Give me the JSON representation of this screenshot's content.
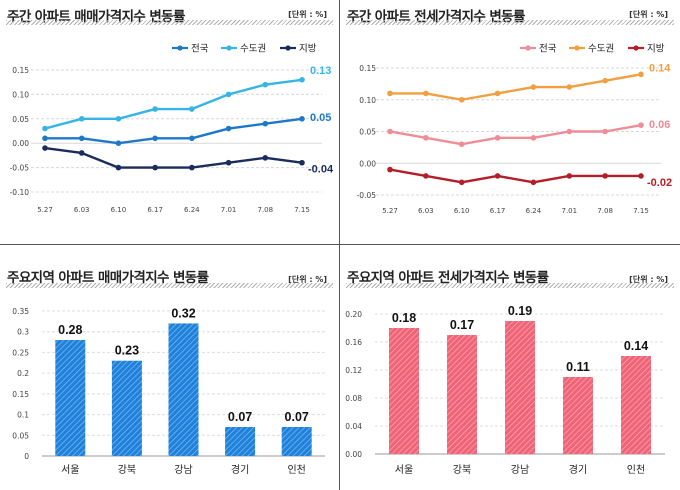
{
  "chart_data": [
    {
      "type": "line",
      "title": "주간 아파트 매매가격지수 변동률",
      "unit_label": "[단위 : %]",
      "categories": [
        "5.27",
        "6.03",
        "6.10",
        "6.17",
        "6.24",
        "7.01",
        "7.08",
        "7.15"
      ],
      "ylim": [
        -0.1,
        0.15
      ],
      "yticks": [
        0.15,
        0.1,
        0.05,
        0.0,
        -0.05,
        -0.1
      ],
      "ytick_labels": [
        "0.15",
        "0.10",
        "0.05",
        "0.00",
        "-0.05",
        "-0.10"
      ],
      "legend_position": "top-right",
      "series": [
        {
          "name": "전국",
          "color": "#1e78c8",
          "values": [
            0.01,
            0.01,
            0.0,
            0.01,
            0.01,
            0.03,
            0.04,
            0.05
          ],
          "end_label": "0.05"
        },
        {
          "name": "수도권",
          "color": "#36b4e6",
          "values": [
            0.03,
            0.05,
            0.05,
            0.07,
            0.07,
            0.1,
            0.12,
            0.13
          ],
          "end_label": "0.13"
        },
        {
          "name": "지방",
          "color": "#1a2c5e",
          "values": [
            -0.01,
            -0.02,
            -0.05,
            -0.05,
            -0.05,
            -0.04,
            -0.03,
            -0.04
          ],
          "end_label": "-0.04"
        }
      ]
    },
    {
      "type": "line",
      "title": "주간 아파트 전세가격지수 변동률",
      "unit_label": "[단위 : %]",
      "categories": [
        "5.27",
        "6.03",
        "6.10",
        "6.17",
        "6.24",
        "7.01",
        "7.08",
        "7.15"
      ],
      "ylim": [
        -0.05,
        0.15
      ],
      "yticks": [
        0.15,
        0.1,
        0.05,
        0.0,
        -0.05
      ],
      "ytick_labels": [
        "0.15",
        "0.10",
        "0.05",
        "0.00",
        "-0.05"
      ],
      "legend_position": "top-right",
      "series": [
        {
          "name": "전국",
          "color": "#f08c96",
          "values": [
            0.05,
            0.04,
            0.03,
            0.04,
            0.04,
            0.05,
            0.05,
            0.06
          ],
          "end_label": "0.06"
        },
        {
          "name": "수도권",
          "color": "#f0a040",
          "values": [
            0.11,
            0.11,
            0.1,
            0.11,
            0.12,
            0.12,
            0.13,
            0.14
          ],
          "end_label": "0.14"
        },
        {
          "name": "지방",
          "color": "#b41e28",
          "values": [
            -0.01,
            -0.02,
            -0.03,
            -0.02,
            -0.03,
            -0.02,
            -0.02,
            -0.02
          ],
          "end_label": "-0.02"
        }
      ]
    },
    {
      "type": "bar",
      "title": "주요지역 아파트 매매가격지수 변동률",
      "unit_label": "[단위 : %]",
      "categories": [
        "서울",
        "강북",
        "강남",
        "경기",
        "인천"
      ],
      "values": [
        0.28,
        0.23,
        0.32,
        0.07,
        0.07
      ],
      "value_labels": [
        "0.28",
        "0.23",
        "0.32",
        "0.07",
        "0.07"
      ],
      "ylim": [
        0,
        0.35
      ],
      "yticks": [
        0.35,
        0.3,
        0.25,
        0.2,
        0.15,
        0.1,
        0.05,
        0.0
      ],
      "ytick_labels": [
        "0.35",
        "0.3",
        "0.25",
        "0.2",
        "0.15",
        "0.1",
        "0.05",
        "0"
      ],
      "color": "#1e82dc"
    },
    {
      "type": "bar",
      "title": "주요지역 아파트 전세가격지수 변동률",
      "unit_label": "[단위 : %]",
      "categories": [
        "서울",
        "강북",
        "강남",
        "경기",
        "인천"
      ],
      "values": [
        0.18,
        0.17,
        0.19,
        0.11,
        0.14
      ],
      "value_labels": [
        "0.18",
        "0.17",
        "0.19",
        "0.11",
        "0.14"
      ],
      "ylim": [
        0,
        0.2
      ],
      "yticks": [
        0.2,
        0.16,
        0.12,
        0.08,
        0.04,
        0.0
      ],
      "ytick_labels": [
        "0.20",
        "0.16",
        "0.12",
        "0.08",
        "0.04",
        "0.00"
      ],
      "color": "#f06478"
    }
  ]
}
